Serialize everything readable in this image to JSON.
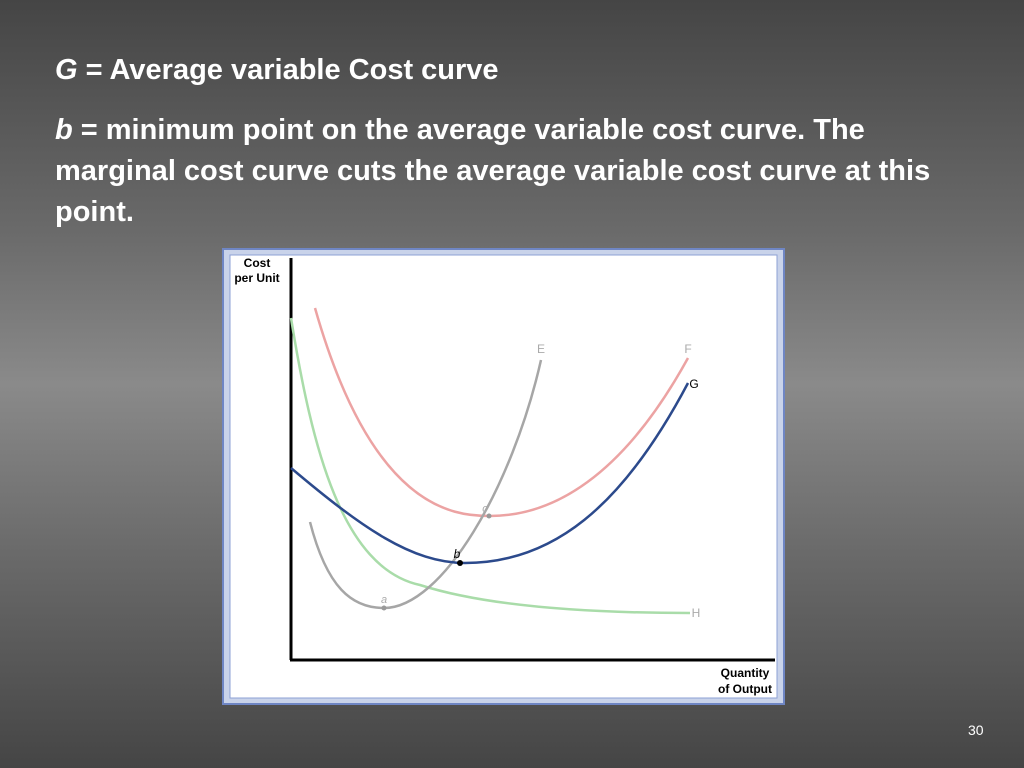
{
  "definitions": [
    {
      "term": "G",
      "text": "= Average variable Cost curve"
    },
    {
      "term": "b",
      "text": "= minimum point on the average variable cost curve. The marginal cost curve cuts the average variable cost curve at this point."
    }
  ],
  "diagram": {
    "y_axis_label": [
      "Cost",
      "per Unit"
    ],
    "x_axis_label": [
      "Quantity",
      "of Output"
    ],
    "curves": [
      "E",
      "F",
      "G",
      "H"
    ],
    "points": [
      "a",
      "b",
      "c"
    ]
  },
  "page_number": "30"
}
